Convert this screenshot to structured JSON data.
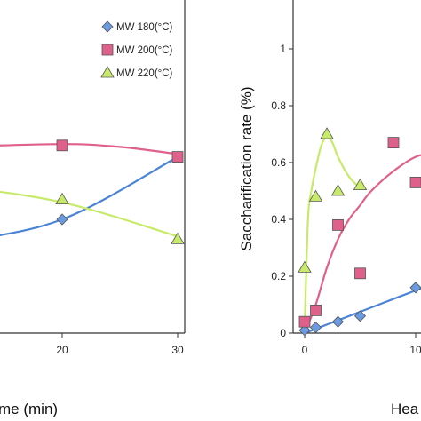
{
  "chart_data": [
    {
      "type": "scatter",
      "title": "",
      "xlabel": "me (min)",
      "ylabel": "",
      "xlim": [
        0,
        30
      ],
      "ylim": [
        0,
        1
      ],
      "x_ticks": [
        "20",
        "30"
      ],
      "grid": false,
      "legend_position": "top-right",
      "series": [
        {
          "name": "MW 180(°C)",
          "marker": "diamond",
          "color": "#6a9ae0",
          "line_color": "#4b84d6",
          "x": [
            20,
            30
          ],
          "y": [
            0.4,
            0.62
          ],
          "fit_x": [
            0,
            10,
            20,
            30
          ],
          "fit_y": [
            0.22,
            0.31,
            0.4,
            0.62
          ]
        },
        {
          "name": "MW 200(°C)",
          "marker": "square",
          "color": "#e0608c",
          "line_color": "#e0608c",
          "x": [
            20,
            30
          ],
          "y": [
            0.66,
            0.62
          ],
          "fit_x": [
            0,
            10,
            20,
            25,
            30
          ],
          "fit_y": [
            0.65,
            0.655,
            0.665,
            0.655,
            0.63
          ]
        },
        {
          "name": "MW 220(°C)",
          "marker": "triangle",
          "color": "#c8ea6a",
          "line_color": "#c8ea6a",
          "x": [
            20,
            30
          ],
          "y": [
            0.47,
            0.33
          ],
          "fit_x": [
            0,
            10,
            20,
            30
          ],
          "fit_y": [
            0.56,
            0.52,
            0.46,
            0.34
          ]
        }
      ]
    },
    {
      "type": "scatter",
      "title": "",
      "xlabel": "Hea",
      "ylabel": "Saccharification rate (%)",
      "xlim": [
        -0.6,
        12
      ],
      "ylim": [
        0,
        1
      ],
      "y_ticks": [
        "0",
        "0.2",
        "0.4",
        "0.6",
        "0.8",
        "1"
      ],
      "x_ticks": [
        "0",
        "10"
      ],
      "grid": false,
      "series": [
        {
          "name": "MW 180(°C)",
          "marker": "diamond",
          "color": "#6a9ae0",
          "line_color": "#4b84d6",
          "x": [
            0,
            1,
            3,
            5,
            10
          ],
          "y": [
            0.01,
            0.02,
            0.04,
            0.06,
            0.16
          ],
          "fit_x": [
            0,
            1,
            2,
            3,
            5,
            7,
            10,
            12
          ],
          "fit_y": [
            0.0,
            0.015,
            0.03,
            0.045,
            0.075,
            0.105,
            0.15,
            0.18
          ]
        },
        {
          "name": "MW 200(°C)",
          "marker": "square",
          "color": "#e0608c",
          "line_color": "#e0608c",
          "x": [
            0,
            1,
            3,
            5,
            8,
            10
          ],
          "y": [
            0.04,
            0.08,
            0.38,
            0.21,
            0.67,
            0.53
          ],
          "fit_x": [
            0,
            1,
            2,
            3,
            4,
            5,
            6,
            8,
            10,
            12
          ],
          "fit_y": [
            0.0,
            0.1,
            0.23,
            0.33,
            0.4,
            0.45,
            0.5,
            0.57,
            0.62,
            0.64
          ]
        },
        {
          "name": "MW 220(°C)",
          "marker": "triangle",
          "color": "#c8ea6a",
          "line_color": "#c8ea6a",
          "x": [
            0,
            1,
            2,
            3,
            5
          ],
          "y": [
            0.23,
            0.48,
            0.7,
            0.5,
            0.52
          ],
          "fit_x": [
            0,
            0.3,
            0.6,
            1,
            1.5,
            2,
            2.5,
            3,
            4,
            5
          ],
          "fit_y": [
            0.02,
            0.4,
            0.5,
            0.58,
            0.66,
            0.69,
            0.67,
            0.62,
            0.55,
            0.51
          ]
        }
      ]
    }
  ]
}
